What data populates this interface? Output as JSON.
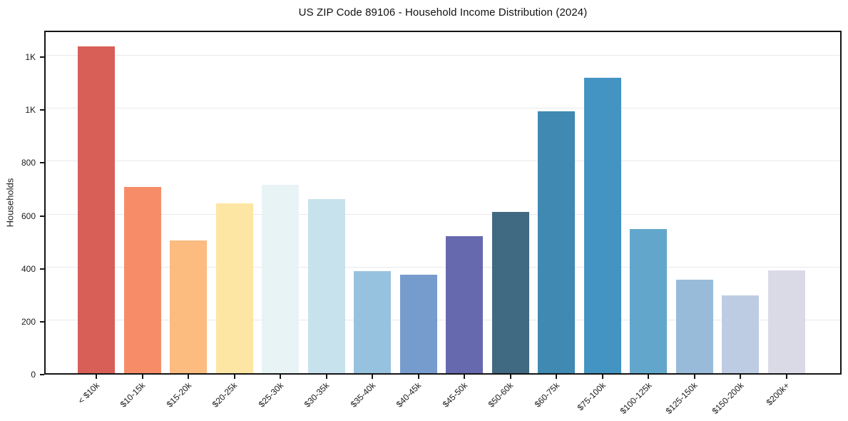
{
  "chart_data": {
    "type": "bar",
    "title": "US ZIP Code 89106 - Household Income Distribution (2024)",
    "xlabel": "",
    "ylabel": "Households",
    "categories": [
      "< $10k",
      "$10-15k",
      "$15-20k",
      "$20-25k",
      "$25-30k",
      "$30-35k",
      "$35-40k",
      "$40-45k",
      "$45-50k",
      "$50-60k",
      "$60-75k",
      "$75-100k",
      "$100-125k",
      "$125-150k",
      "$150-200k",
      "$200k+"
    ],
    "values": [
      1236,
      704,
      503,
      641,
      713,
      658,
      387,
      373,
      519,
      610,
      991,
      1117,
      545,
      353,
      295,
      389
    ],
    "bar_colors": [
      "#d6554e",
      "#f5865f",
      "#fcb777",
      "#fde49e",
      "#e7f2f5",
      "#c3e0ec",
      "#90bedd",
      "#6d96ca",
      "#5c60a8",
      "#346179",
      "#3382ae",
      "#388dbf",
      "#58a1c8",
      "#92b7d7",
      "#bac9e1",
      "#d8d8e5"
    ],
    "ylim": [
      0,
      1300
    ],
    "yticks": [
      {
        "value": 0,
        "label": "0"
      },
      {
        "value": 200,
        "label": "200"
      },
      {
        "value": 400,
        "label": "400"
      },
      {
        "value": 600,
        "label": "600"
      },
      {
        "value": 800,
        "label": "800"
      },
      {
        "value": 1000,
        "label": "1K"
      },
      {
        "value": 1200,
        "label": "1K"
      }
    ],
    "grid": "horizontal",
    "legend": "none",
    "axis_color": "#151515",
    "grid_color": "#e9e9ec"
  }
}
